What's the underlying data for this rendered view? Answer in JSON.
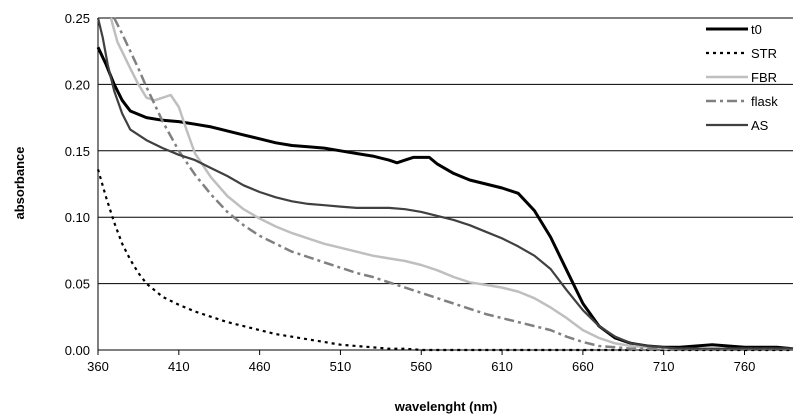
{
  "chart_data": {
    "type": "line",
    "title": "",
    "xlabel": "wavelenght (nm)",
    "ylabel": "absorbance",
    "xlim": [
      360,
      790
    ],
    "ylim": [
      0,
      0.25
    ],
    "xticks": [
      "360",
      "410",
      "460",
      "510",
      "560",
      "610",
      "660",
      "710",
      "760"
    ],
    "yticks": [
      "0.00",
      "0.05",
      "0.10",
      "0.15",
      "0.20",
      "0.25"
    ],
    "grid": "horizontal",
    "legend_position": "right",
    "series": [
      {
        "name": "t0",
        "color": "#000000",
        "style": "solid",
        "width": 3,
        "x": [
          360,
          365,
          370,
          375,
          380,
          390,
          400,
          410,
          420,
          430,
          440,
          450,
          460,
          470,
          480,
          490,
          500,
          510,
          520,
          530,
          540,
          545,
          550,
          555,
          560,
          565,
          570,
          580,
          590,
          600,
          610,
          620,
          630,
          640,
          650,
          660,
          670,
          680,
          690,
          700,
          710,
          720,
          730,
          740,
          750,
          760,
          770,
          780,
          790
        ],
        "y": [
          0.228,
          0.215,
          0.2,
          0.188,
          0.18,
          0.175,
          0.173,
          0.172,
          0.17,
          0.168,
          0.165,
          0.162,
          0.159,
          0.156,
          0.154,
          0.153,
          0.152,
          0.15,
          0.148,
          0.146,
          0.143,
          0.141,
          0.143,
          0.145,
          0.145,
          0.145,
          0.14,
          0.133,
          0.128,
          0.125,
          0.122,
          0.118,
          0.105,
          0.085,
          0.06,
          0.035,
          0.018,
          0.009,
          0.005,
          0.003,
          0.002,
          0.002,
          0.003,
          0.004,
          0.003,
          0.002,
          0.002,
          0.002,
          0.001
        ]
      },
      {
        "name": "STR",
        "color": "#000000",
        "style": "dotted",
        "width": 2.2,
        "x": [
          360,
          365,
          370,
          375,
          380,
          385,
          390,
          400,
          410,
          420,
          430,
          440,
          450,
          460,
          470,
          480,
          490,
          500,
          510,
          520,
          530,
          540,
          550,
          560,
          570,
          580,
          590,
          600,
          610,
          620,
          630,
          640,
          650,
          660,
          670,
          680,
          690,
          700,
          710,
          720,
          730,
          740,
          750,
          760,
          770,
          780,
          790
        ],
        "y": [
          0.136,
          0.115,
          0.096,
          0.08,
          0.068,
          0.058,
          0.05,
          0.04,
          0.034,
          0.029,
          0.025,
          0.021,
          0.018,
          0.015,
          0.012,
          0.01,
          0.008,
          0.006,
          0.004,
          0.003,
          0.002,
          0.001,
          0.001,
          0.0,
          0.0,
          0.0,
          0.0,
          0.0,
          0.0,
          0.0,
          0.0,
          0.0,
          0.0,
          0.0,
          0.0,
          0.0,
          0.0,
          0.0,
          0.0,
          0.0,
          0.0,
          0.0,
          0.0,
          0.0,
          0.0,
          0.0,
          0.0
        ]
      },
      {
        "name": "FBR",
        "color": "#bfbfbf",
        "style": "solid",
        "width": 2.5,
        "x": [
          368,
          372,
          376,
          380,
          385,
          390,
          395,
          400,
          405,
          410,
          415,
          420,
          430,
          440,
          450,
          460,
          470,
          480,
          490,
          500,
          510,
          520,
          530,
          540,
          550,
          560,
          570,
          580,
          590,
          600,
          610,
          620,
          630,
          640,
          650,
          660,
          670,
          680,
          690,
          700,
          710,
          720,
          730,
          740,
          750,
          760,
          770,
          780,
          790
        ],
        "y": [
          0.25,
          0.232,
          0.222,
          0.212,
          0.2,
          0.19,
          0.188,
          0.19,
          0.192,
          0.183,
          0.165,
          0.148,
          0.13,
          0.116,
          0.106,
          0.099,
          0.093,
          0.088,
          0.084,
          0.08,
          0.077,
          0.074,
          0.071,
          0.069,
          0.067,
          0.064,
          0.06,
          0.055,
          0.051,
          0.049,
          0.047,
          0.044,
          0.039,
          0.032,
          0.024,
          0.015,
          0.009,
          0.005,
          0.003,
          0.002,
          0.001,
          0.001,
          0.001,
          0.001,
          0.001,
          0.001,
          0.001,
          0.001,
          0.001
        ]
      },
      {
        "name": "flask",
        "color": "#808080",
        "style": "dashdot",
        "width": 2.5,
        "x": [
          370,
          375,
          380,
          385,
          390,
          395,
          400,
          410,
          420,
          430,
          440,
          450,
          460,
          470,
          480,
          490,
          500,
          510,
          520,
          530,
          540,
          550,
          560,
          570,
          580,
          590,
          600,
          610,
          620,
          630,
          640,
          650,
          660,
          670,
          680,
          690,
          700,
          710,
          720,
          730,
          740,
          750,
          760,
          770,
          780,
          790
        ],
        "y": [
          0.25,
          0.238,
          0.225,
          0.212,
          0.198,
          0.185,
          0.172,
          0.15,
          0.132,
          0.117,
          0.104,
          0.094,
          0.086,
          0.08,
          0.074,
          0.07,
          0.066,
          0.062,
          0.058,
          0.055,
          0.051,
          0.047,
          0.043,
          0.039,
          0.035,
          0.031,
          0.027,
          0.024,
          0.021,
          0.018,
          0.015,
          0.01,
          0.006,
          0.003,
          0.002,
          0.001,
          0.001,
          0.001,
          0.001,
          0.001,
          0.001,
          0.001,
          0.001,
          0.001,
          0.001,
          0.001
        ]
      },
      {
        "name": "AS",
        "color": "#404040",
        "style": "solid",
        "width": 2.2,
        "x": [
          360,
          363,
          366,
          370,
          375,
          380,
          390,
          400,
          410,
          420,
          430,
          440,
          450,
          460,
          470,
          480,
          490,
          500,
          510,
          520,
          530,
          540,
          550,
          560,
          570,
          580,
          590,
          600,
          610,
          620,
          630,
          640,
          650,
          660,
          670,
          680,
          690,
          700,
          710,
          720,
          730,
          740,
          750,
          760,
          770,
          780,
          790
        ],
        "y": [
          0.25,
          0.235,
          0.215,
          0.195,
          0.178,
          0.166,
          0.158,
          0.152,
          0.147,
          0.143,
          0.137,
          0.131,
          0.124,
          0.119,
          0.115,
          0.112,
          0.11,
          0.109,
          0.108,
          0.107,
          0.107,
          0.107,
          0.106,
          0.104,
          0.101,
          0.098,
          0.094,
          0.089,
          0.084,
          0.078,
          0.071,
          0.061,
          0.045,
          0.03,
          0.018,
          0.01,
          0.005,
          0.003,
          0.002,
          0.001,
          0.001,
          0.001,
          0.001,
          0.001,
          0.001,
          0.001,
          0.001
        ]
      }
    ]
  }
}
